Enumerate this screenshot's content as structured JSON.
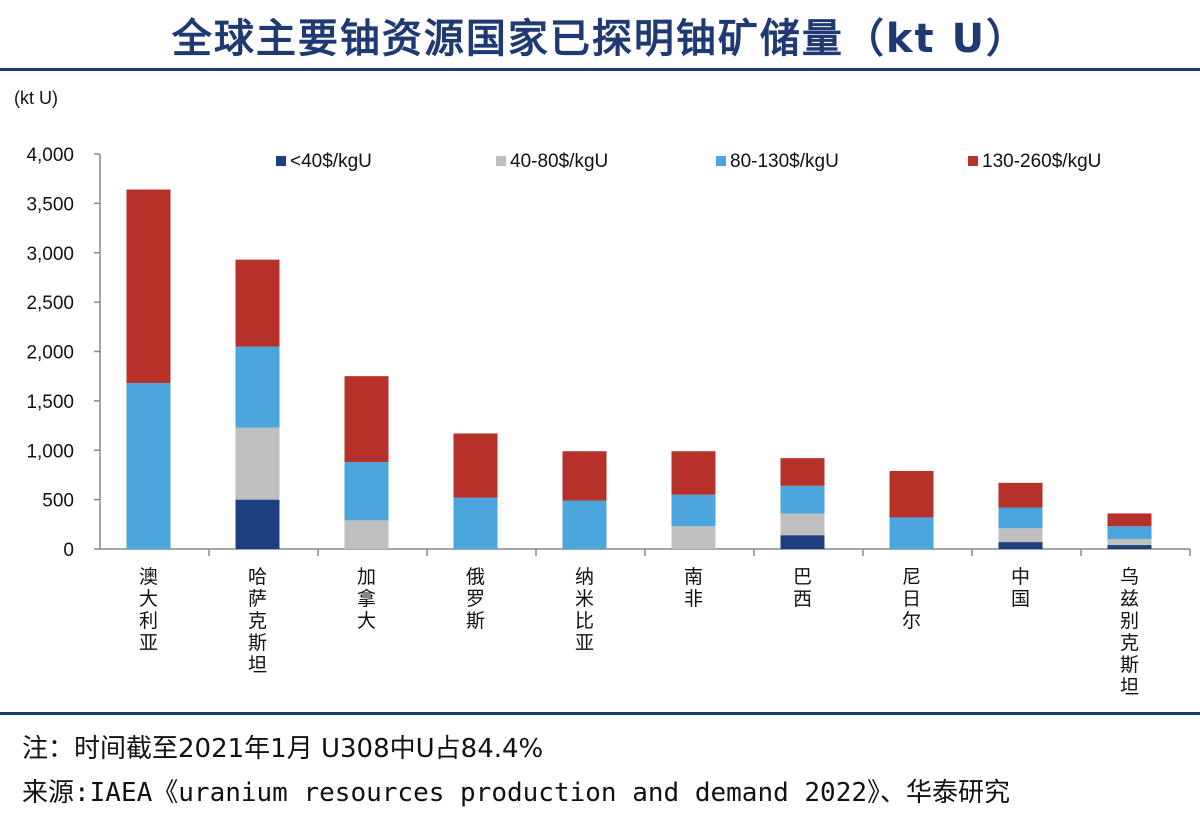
{
  "page": {
    "title": "全球主要铀资源国家已探明铀矿储量（kt U）",
    "unit_label": "(kt U)",
    "note": "注：时间截至2021年1月 U308中U占84.4%",
    "source": "来源:IAEA《uranium resources production and demand 2022》、华泰研究"
  },
  "chart_data": {
    "type": "bar",
    "stacked": true,
    "categories": [
      "澳大利亚",
      "哈萨克斯坦",
      "加拿大",
      "俄罗斯",
      "纳米比亚",
      "南非",
      "巴西",
      "尼日尔",
      "中国",
      "乌兹别克斯坦"
    ],
    "series": [
      {
        "name": "<40$/kgU",
        "color": "#1c3f82",
        "values": [
          0,
          500,
          0,
          0,
          0,
          0,
          140,
          0,
          70,
          40
        ]
      },
      {
        "name": "40-80$/kgU",
        "color": "#bfbfbf",
        "values": [
          0,
          730,
          290,
          0,
          0,
          230,
          220,
          0,
          140,
          60
        ]
      },
      {
        "name": "80-130$/kgU",
        "color": "#4aa6dc",
        "values": [
          1680,
          820,
          590,
          520,
          490,
          320,
          280,
          320,
          210,
          130
        ]
      },
      {
        "name": "130-260$/kgU",
        "color": "#b5312a",
        "values": [
          1960,
          880,
          870,
          650,
          500,
          440,
          280,
          470,
          250,
          130
        ]
      }
    ],
    "ylim": [
      0,
      4000
    ],
    "yticks": [
      0,
      500,
      1000,
      1500,
      2000,
      2500,
      3000,
      3500,
      4000
    ],
    "ytick_labels": [
      "0",
      "500",
      "1,000",
      "1,500",
      "2,000",
      "2,500",
      "3,000",
      "3,500",
      "4,000"
    ],
    "legend_position": "top",
    "grid": false
  }
}
